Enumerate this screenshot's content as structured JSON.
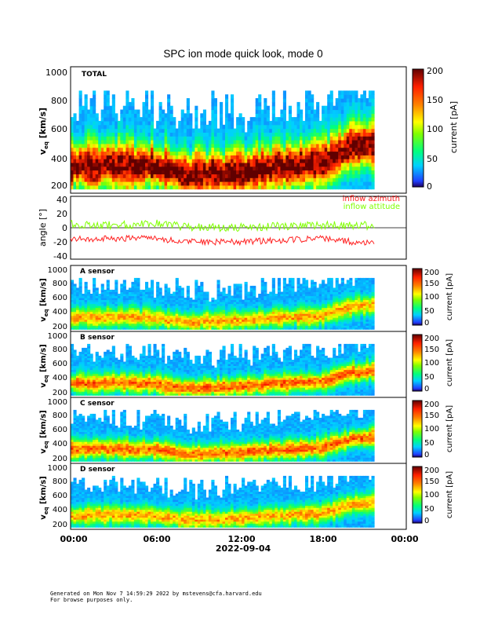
{
  "figure": {
    "title": "SPC ion mode quick look, mode 0",
    "date": "2022-09-04",
    "xticks": [
      "00:00",
      "06:00",
      "12:00",
      "18:00",
      "00:00"
    ]
  },
  "colorbar": {
    "label": "current [pA]",
    "ticks_large": [
      "0",
      "50",
      "100",
      "150",
      "200"
    ],
    "ticks_small": [
      "0",
      "50",
      "100",
      "150",
      "200"
    ]
  },
  "panels": {
    "total": {
      "label": "TOTAL",
      "ylabel_main": "v",
      "ylabel_sub": "eq",
      "ylabel_unit": " [km/s]",
      "yticks": [
        "200",
        "400",
        "600",
        "800",
        "1000"
      ]
    },
    "angle": {
      "ylabel": "angle [°]",
      "yticks": [
        "-40",
        "-20",
        "0",
        "20",
        "40"
      ],
      "legend_azimuth": "inflow azimuth",
      "legend_attitude": "inflow attitude"
    },
    "a": {
      "label": "A sensor",
      "yticks": [
        "200",
        "400",
        "600",
        "800",
        "1000"
      ]
    },
    "b": {
      "label": "B sensor",
      "yticks": [
        "200",
        "400",
        "600",
        "800",
        "1000"
      ]
    },
    "c": {
      "label": "C sensor",
      "yticks": [
        "200",
        "400",
        "600",
        "800",
        "1000"
      ]
    },
    "d": {
      "label": "D sensor",
      "yticks": [
        "200",
        "400",
        "600",
        "800",
        "1000"
      ]
    }
  },
  "footer": {
    "line1": "Generated on Mon Nov  7 14:59:29 2022 by mstevens@cfa.harvard.edu",
    "line2": "For browse purposes only."
  },
  "colors": {
    "azimuth": "#ff2020",
    "attitude": "#80ff00"
  },
  "chart_data": {
    "type": "heatmap",
    "title": "SPC ion mode quick look, mode 0",
    "xlabel": "2022-09-04",
    "xlim_hours": [
      0,
      24
    ],
    "data_end_hour": 21.7,
    "spectrograms": [
      {
        "name": "TOTAL",
        "ylabel": "v_eq [km/s]",
        "ylim": [
          150,
          1050
        ],
        "clim": [
          0,
          200
        ],
        "clabel": "current [pA]",
        "peak_velocity_track_hours": [
          0,
          3,
          6,
          7.8,
          9,
          12,
          15,
          18,
          20,
          21.7
        ],
        "peak_velocity_track_kms": [
          330,
          340,
          330,
          270,
          270,
          290,
          330,
          360,
          480,
          500
        ]
      },
      {
        "name": "A sensor",
        "ylabel": "v_eq [km/s]",
        "ylim": [
          150,
          1050
        ],
        "clim": [
          0,
          200
        ]
      },
      {
        "name": "B sensor",
        "ylabel": "v_eq [km/s]",
        "ylim": [
          150,
          1050
        ],
        "clim": [
          0,
          200
        ]
      },
      {
        "name": "C sensor",
        "ylabel": "v_eq [km/s]",
        "ylim": [
          150,
          1050
        ],
        "clim": [
          0,
          200
        ]
      },
      {
        "name": "D sensor",
        "ylabel": "v_eq [km/s]",
        "ylim": [
          150,
          1050
        ],
        "clim": [
          0,
          200
        ]
      }
    ],
    "angle_panel": {
      "ylabel": "angle [°]",
      "ylim": [
        -45,
        45
      ],
      "series": [
        {
          "name": "inflow azimuth",
          "hours": [
            0,
            3,
            6,
            7.8,
            12,
            15,
            18,
            20,
            21.7
          ],
          "values": [
            -15,
            -16,
            -14,
            -20,
            -20,
            -18,
            -15,
            -20,
            -22
          ]
        },
        {
          "name": "inflow attitude",
          "hours": [
            0,
            3,
            6,
            7.8,
            12,
            15,
            18,
            20,
            21.7
          ],
          "values": [
            5,
            4,
            6,
            2,
            0,
            2,
            3,
            4,
            3
          ]
        }
      ]
    }
  }
}
